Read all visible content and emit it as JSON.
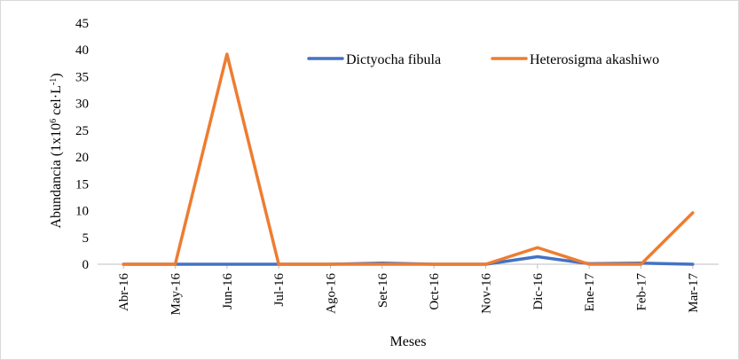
{
  "chart_data": {
    "type": "line",
    "categories": [
      "Abr-16",
      "May-16",
      "Jun-16",
      "Jul-16",
      "Ago-16",
      "Set-16",
      "Oct-16",
      "Nov-16",
      "Dic-16",
      "Ene-17",
      "Feb-17",
      "Mar-17"
    ],
    "series": [
      {
        "name": "Dictyocha fibula",
        "color": "#4472c4",
        "values": [
          0,
          0,
          0,
          0,
          0,
          0.2,
          0,
          0,
          1.4,
          0.1,
          0.2,
          0
        ]
      },
      {
        "name": "Heterosigma akashiwo",
        "color": "#ed7d31",
        "values": [
          0,
          0,
          39.2,
          0,
          0,
          0,
          0,
          0,
          3.1,
          0,
          0,
          9.6
        ]
      }
    ],
    "yticks": [
      0,
      5,
      10,
      15,
      20,
      25,
      30,
      35,
      40,
      45
    ],
    "ylim": [
      0,
      45
    ],
    "ylabel_parts": {
      "pre": "Abundancia (1x10",
      "sup1": "6",
      "mid": " cel·L",
      "sup2": "-1",
      "post": ")"
    },
    "xlabel": "Meses",
    "legend_position": "top-right",
    "grid": false
  }
}
